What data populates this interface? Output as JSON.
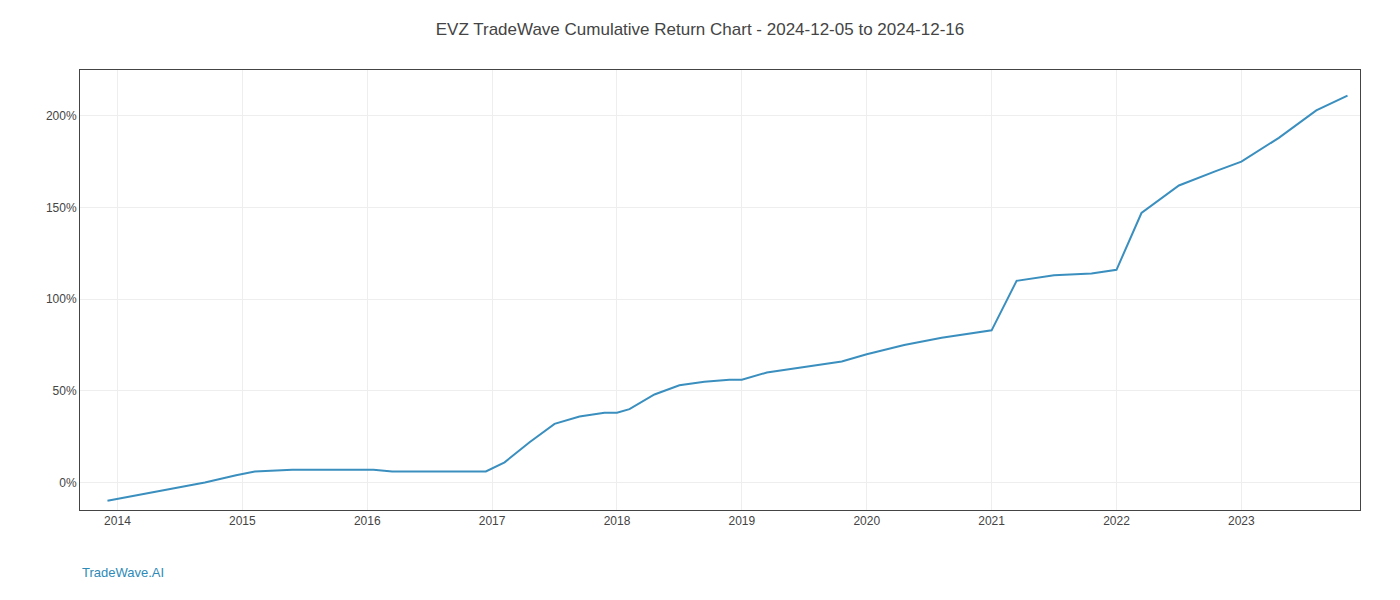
{
  "chart_data": {
    "type": "line",
    "title": "EVZ TradeWave Cumulative Return Chart - 2024-12-05 to 2024-12-16",
    "annotations": [
      "TradeWave.AI"
    ],
    "x": [
      2013.92,
      2014.0,
      2014.15,
      2014.4,
      2014.7,
      2014.95,
      2015.1,
      2015.4,
      2015.7,
      2015.92,
      2016.05,
      2016.2,
      2016.4,
      2016.6,
      2016.75,
      2016.85,
      2016.95,
      2017.1,
      2017.3,
      2017.5,
      2017.7,
      2017.9,
      2018.0,
      2018.1,
      2018.3,
      2018.5,
      2018.7,
      2018.9,
      2019.0,
      2019.2,
      2019.5,
      2019.8,
      2020.0,
      2020.3,
      2020.6,
      2020.9,
      2021.0,
      2021.2,
      2021.5,
      2021.8,
      2022.0,
      2022.2,
      2022.5,
      2022.8,
      2023.0,
      2023.3,
      2023.6,
      2023.85
    ],
    "values": [
      -10,
      -9,
      -7,
      -4,
      0,
      4,
      6,
      7,
      7,
      7,
      7,
      6,
      6,
      6,
      6,
      6,
      6,
      11,
      22,
      32,
      36,
      38,
      38,
      40,
      48,
      53,
      55,
      56,
      56,
      60,
      63,
      66,
      70,
      75,
      79,
      82,
      83,
      110,
      113,
      114,
      116,
      147,
      162,
      170,
      175,
      188,
      203,
      211
    ],
    "color": "#3a8fbf",
    "xlim": [
      2013.7,
      2023.95
    ],
    "xticks": [
      2014,
      2015,
      2016,
      2017,
      2018,
      2019,
      2020,
      2021,
      2022,
      2023
    ],
    "ylim": [
      -15,
      225
    ],
    "yticks": [
      {
        "value": 0,
        "label": "0%"
      },
      {
        "value": 50,
        "label": "50%"
      },
      {
        "value": 100,
        "label": "100%"
      },
      {
        "value": 150,
        "label": "150%"
      },
      {
        "value": 200,
        "label": "200%"
      }
    ],
    "grid": true
  }
}
